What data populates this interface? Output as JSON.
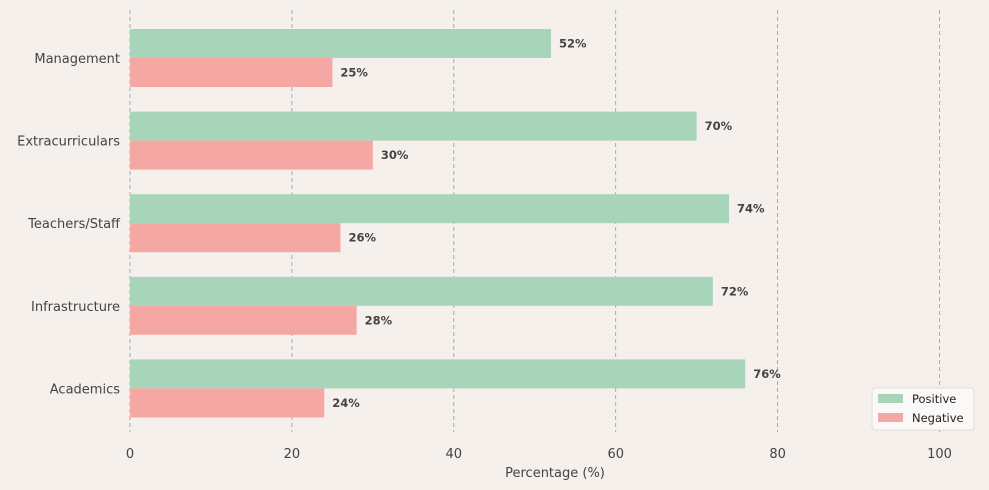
{
  "chart_data": {
    "type": "bar",
    "orientation": "horizontal",
    "categories": [
      "Management",
      "Extracurriculars",
      "Teachers/Staff",
      "Infrastructure",
      "Academics"
    ],
    "series": [
      {
        "name": "Positive",
        "color": "#a8d5ba",
        "values": [
          52,
          70,
          74,
          72,
          76
        ]
      },
      {
        "name": "Negative",
        "color": "#f5a7a3",
        "values": [
          25,
          30,
          26,
          28,
          24
        ]
      }
    ],
    "value_labels": {
      "Positive": [
        "52%",
        "70%",
        "74%",
        "72%",
        "76%"
      ],
      "Negative": [
        "25%",
        "30%",
        "26%",
        "28%",
        "24%"
      ]
    },
    "xlabel": "Percentage (%)",
    "ylabel": "",
    "xlim": [
      0,
      105
    ],
    "xticks": [
      0,
      20,
      40,
      60,
      80,
      100
    ],
    "grid": "x-dashed",
    "legend": "bottom-right"
  }
}
